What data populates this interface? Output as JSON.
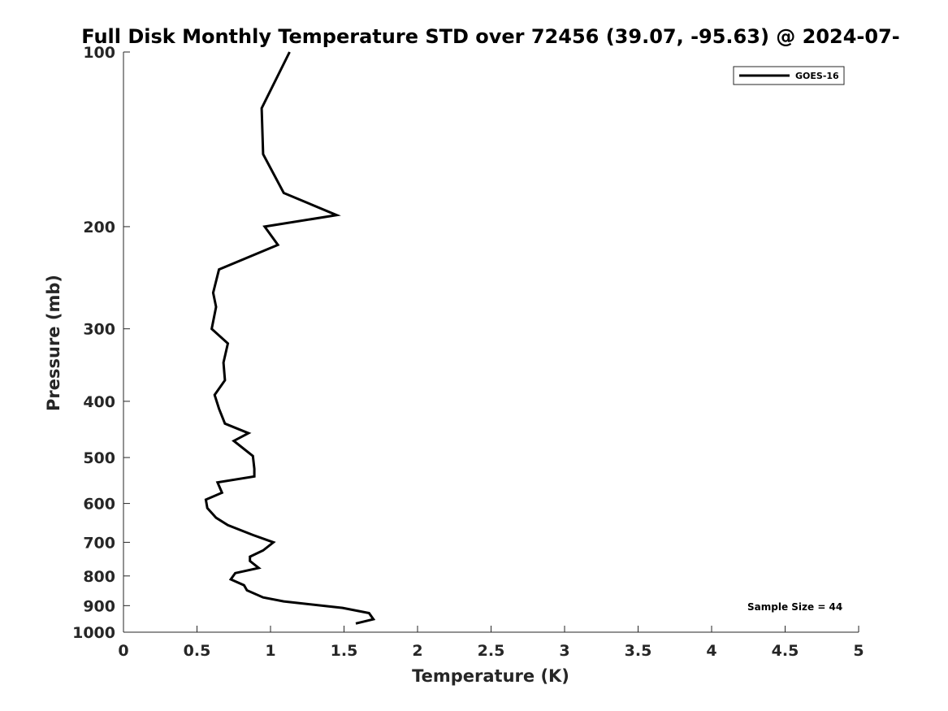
{
  "chart_data": {
    "type": "line",
    "title": "Full Disk Monthly Temperature STD over 72456 (39.07, -95.63) @ 2024-07-",
    "xlabel": "Temperature (K)",
    "ylabel": "Pressure (mb)",
    "xlim": [
      0,
      5
    ],
    "ylim": [
      100,
      1000
    ],
    "y_scale": "log",
    "y_reversed": true,
    "grid": false,
    "legend_position": "top-right",
    "xticks": [
      0,
      0.5,
      1,
      1.5,
      2,
      2.5,
      3,
      3.5,
      4,
      4.5,
      5
    ],
    "xtick_labels": [
      "0",
      "0.5",
      "1",
      "1.5",
      "2",
      "2.5",
      "3",
      "3.5",
      "4",
      "4.5",
      "5"
    ],
    "yticks": [
      100,
      200,
      300,
      400,
      500,
      600,
      700,
      800,
      900,
      1000
    ],
    "ytick_labels": [
      "100",
      "200",
      "300",
      "400",
      "500",
      "600",
      "700",
      "800",
      "900",
      "1000"
    ],
    "annotation": "Sample Size = 44",
    "series": [
      {
        "name": "GOES-16",
        "color": "#000000",
        "points": [
          [
            1.13,
            100
          ],
          [
            0.94,
            125
          ],
          [
            0.95,
            150
          ],
          [
            1.09,
            175
          ],
          [
            1.45,
            191
          ],
          [
            0.96,
            200
          ],
          [
            1.05,
            215
          ],
          [
            0.65,
            237
          ],
          [
            0.61,
            260
          ],
          [
            0.63,
            275
          ],
          [
            0.6,
            300
          ],
          [
            0.71,
            318
          ],
          [
            0.68,
            343
          ],
          [
            0.69,
            368
          ],
          [
            0.62,
            390
          ],
          [
            0.65,
            412
          ],
          [
            0.69,
            437
          ],
          [
            0.85,
            454
          ],
          [
            0.75,
            468
          ],
          [
            0.88,
            497
          ],
          [
            0.89,
            523
          ],
          [
            0.89,
            539
          ],
          [
            0.64,
            552
          ],
          [
            0.67,
            575
          ],
          [
            0.56,
            591
          ],
          [
            0.57,
            611
          ],
          [
            0.63,
            635
          ],
          [
            0.71,
            654
          ],
          [
            0.88,
            680
          ],
          [
            1.02,
            700
          ],
          [
            0.95,
            723
          ],
          [
            0.86,
            741
          ],
          [
            0.86,
            754
          ],
          [
            0.92,
            775
          ],
          [
            0.76,
            791
          ],
          [
            0.73,
            811
          ],
          [
            0.82,
            830
          ],
          [
            0.84,
            847
          ],
          [
            0.95,
            871
          ],
          [
            1.09,
            885
          ],
          [
            1.49,
            908
          ],
          [
            1.67,
            927
          ],
          [
            1.7,
            950
          ],
          [
            1.58,
            966
          ]
        ]
      }
    ]
  }
}
